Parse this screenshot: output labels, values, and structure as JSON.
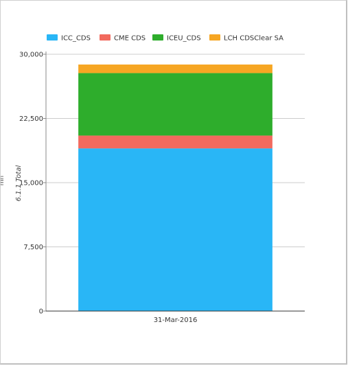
{
  "chart_data": {
    "type": "bar",
    "stacked": true,
    "categories": [
      "31-Mar-2016"
    ],
    "series": [
      {
        "name": "ICC_CDS",
        "values": [
          19000
        ],
        "color": "#29b6f6"
      },
      {
        "name": "CME CDS",
        "values": [
          1500
        ],
        "color": "#f26a5e"
      },
      {
        "name": "ICEU_CDS",
        "values": [
          7300
        ],
        "color": "#2ead2c"
      },
      {
        "name": "LCH CDSClear SA",
        "values": [
          1000
        ],
        "color": "#f6a623"
      }
    ],
    "title": "",
    "xlabel": "",
    "ylabel": "6.1.1 Total",
    "yunit": "mn",
    "ylim": [
      0,
      30000
    ],
    "yticks": [
      0,
      7500,
      15000,
      22500,
      30000
    ],
    "ytick_labels": [
      "0",
      "7,500",
      "15,000",
      "22,500",
      "30,000"
    ],
    "grid": true,
    "legend_position": "top"
  }
}
